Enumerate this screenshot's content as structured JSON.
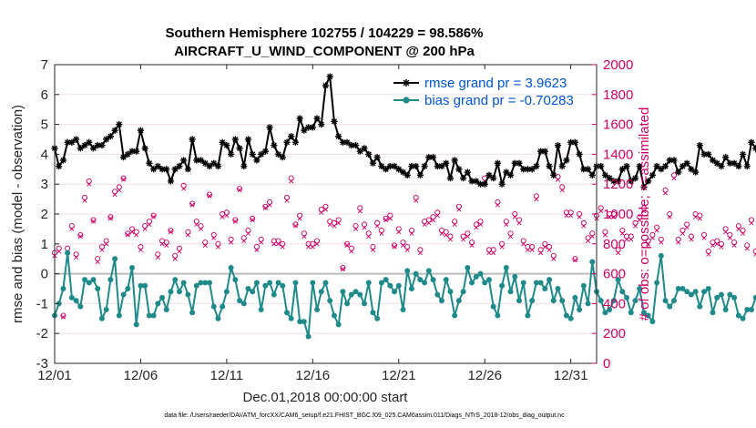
{
  "chart_data": {
    "type": "line",
    "title": "Southern Hemisphere 102755 / 104229 = 98.586%",
    "subtitle": "AIRCRAFT_U_WIND_COMPONENT @ 200 hPa",
    "xlabel": "Dec.01,2018 00:00:00 start",
    "ylabel": "rmse and bias (model - observation)",
    "y2label": "# of obs: o=possible; ×=assimilated",
    "footnote": "data file: /Users/raeder/DAI/ATM_forcXX/CAM6_setup/f.e21.FHIST_BGC.f09_025.CAM6assim.011/Diags_NTrS_2018-12/obs_diag_output.nc",
    "xlim": [
      1,
      32.5
    ],
    "ylim": [
      -3,
      7
    ],
    "y2lim": [
      0,
      2000
    ],
    "x_tick_values": [
      1,
      6,
      11,
      16,
      21,
      26,
      31
    ],
    "x_tick_labels": [
      "12/01",
      "12/06",
      "12/11",
      "12/16",
      "12/21",
      "12/26",
      "12/31"
    ],
    "y_ticks": [
      "-3",
      "-2",
      "-1",
      "0",
      "1",
      "2",
      "3",
      "4",
      "5",
      "6",
      "7"
    ],
    "y2_ticks": [
      "0",
      "200",
      "400",
      "600",
      "800",
      "1000",
      "1200",
      "1400",
      "1600",
      "1800",
      "2000"
    ],
    "x_start": 1,
    "x_step": 0.25,
    "series": [
      {
        "name": "rmse grand pr = 3.9623",
        "color": "#000000",
        "marker": "star",
        "values": [
          4.2,
          3.6,
          3.8,
          4.4,
          4.4,
          4.5,
          4.2,
          4.3,
          4.4,
          4.2,
          4.3,
          4.3,
          4.5,
          4.6,
          4.8,
          5.0,
          3.9,
          4.0,
          4.1,
          4.1,
          4.8,
          4.2,
          3.7,
          3.5,
          3.6,
          3.5,
          3.5,
          3.1,
          3.5,
          3.6,
          3.8,
          3.5,
          4.5,
          3.8,
          3.8,
          3.7,
          3.6,
          3.7,
          3.6,
          4.4,
          4.3,
          4.0,
          4.5,
          4.2,
          3.6,
          4.5,
          4.0,
          3.8,
          4.0,
          4.1,
          4.9,
          4.3,
          4.0,
          3.9,
          4.4,
          4.6,
          4.4,
          5.2,
          4.8,
          4.9,
          4.9,
          5.2,
          5.0,
          6.3,
          6.6,
          5.1,
          4.6,
          4.4,
          4.4,
          4.3,
          4.3,
          4.1,
          4.2,
          4.0,
          3.7,
          3.9,
          3.6,
          3.5,
          3.6,
          3.6,
          3.5,
          3.4,
          3.3,
          3.6,
          3.6,
          3.3,
          3.6,
          3.9,
          3.9,
          3.6,
          3.6,
          3.7,
          3.2,
          3.8,
          3.5,
          3.2,
          3.4,
          3.1,
          3.1,
          3.0,
          3.0,
          3.3,
          3.2,
          3.7,
          3.0,
          3.4,
          3.3,
          3.7,
          3.7,
          3.5,
          3.5,
          3.5,
          3.6,
          4.1,
          4.1,
          3.6,
          3.3,
          4.3,
          3.6,
          3.8,
          4.4,
          4.4,
          4.0,
          3.5,
          3.5,
          3.3,
          3.6,
          3.6,
          3.3,
          3.2,
          3.1,
          3.1,
          3.5,
          3.6,
          3.1,
          3.2,
          3.6,
          2.9,
          3.1,
          3.3,
          3.6,
          3.5,
          3.6,
          3.8,
          3.8,
          3.4,
          3.6,
          3.7,
          3.5,
          3.4,
          4.3,
          4.0,
          4.0,
          3.8,
          3.7,
          3.6,
          3.9,
          3.7,
          3.7,
          3.6,
          4.0,
          3.6,
          4.4,
          4.2,
          3.5,
          3.4
        ]
      },
      {
        "name": "bias grand pr = -0.70283",
        "color": "#1f8a8a",
        "marker": "circle",
        "values": [
          -1.4,
          -1.0,
          -0.5,
          0.7,
          -0.8,
          -0.9,
          -1.1,
          -0.2,
          -0.3,
          -0.2,
          -0.5,
          -1.5,
          -1.2,
          -0.2,
          0.5,
          -1.4,
          -0.7,
          -0.5,
          0.2,
          -1.7,
          -0.4,
          -0.4,
          -1.4,
          -1.4,
          -1.0,
          -0.8,
          -1.2,
          -0.6,
          -0.2,
          -0.6,
          -0.3,
          -0.7,
          -1.3,
          -0.4,
          -0.3,
          -0.3,
          -0.3,
          -1.1,
          -1.5,
          -1.1,
          -0.6,
          0.2,
          -0.2,
          -0.9,
          -1.0,
          -0.5,
          -0.6,
          -0.3,
          -1.2,
          -0.4,
          -0.3,
          -0.7,
          -0.3,
          -0.4,
          -1.3,
          -1.5,
          -0.3,
          -1.6,
          -1.6,
          -2.1,
          -0.3,
          -1.2,
          -0.6,
          -0.3,
          -0.9,
          -1.4,
          -1.7,
          -0.6,
          -1.0,
          -0.7,
          -0.6,
          -0.7,
          -1.0,
          -0.3,
          -1.3,
          -1.5,
          -0.3,
          -0.2,
          -0.4,
          -0.6,
          -0.4,
          -1.2,
          0.1,
          -0.5,
          0.0,
          -0.2,
          -0.3,
          0.1,
          -0.2,
          -0.7,
          -0.9,
          -0.2,
          -0.6,
          -1.4,
          -0.9,
          -0.6,
          0.2,
          -0.3,
          -0.1,
          0.0,
          -0.3,
          -0.2,
          -1.1,
          -1.4,
          -0.4,
          0.2,
          -0.6,
          -0.1,
          -0.9,
          -0.3,
          -1.4,
          -0.9,
          -0.3,
          -0.3,
          -0.5,
          -0.2,
          -0.9,
          -0.5,
          -0.9,
          -1.4,
          -1.5,
          -0.8,
          -1.2,
          -0.4,
          -1.0,
          0.4,
          -0.6,
          -0.9,
          -1.3,
          -1.2,
          -0.9,
          -0.2,
          -0.6,
          -0.8,
          -1.3,
          -0.9,
          -0.5,
          -1.3,
          -1.4,
          -1.6,
          -0.3,
          0.6,
          -0.9,
          -1.1,
          -0.9,
          -0.5,
          -0.5,
          -0.6,
          -0.7,
          -0.6,
          -1.1,
          -0.6,
          -0.5,
          -1.3,
          -0.8,
          -0.7,
          -1.2,
          -0.7,
          -0.8,
          -1.4,
          -1.5,
          -1.2,
          -1.2,
          -0.8,
          -0.4
        ]
      }
    ],
    "obs_count_series": [
      {
        "name": "# of obs possible",
        "marker": "o",
        "color": "#cc0066",
        "values": [
          740,
          770,
          320,
          770,
          920,
          730,
          860,
          1110,
          1220,
          960,
          700,
          780,
          820,
          980,
          1150,
          1180,
          1240,
          870,
          900,
          880,
          780,
          920,
          950,
          990,
          730,
          820,
          810,
          890,
          720,
          770,
          1190,
          880,
          1070,
          950,
          920,
          810,
          1130,
          860,
          800,
          1000,
          1010,
          830,
          960,
          1170,
          840,
          890,
          970,
          780,
          830,
          1050,
          1080,
          820,
          820,
          800,
          1110,
          1240,
          930,
          990,
          870,
          800,
          800,
          820,
          1030,
          1050,
          950,
          940,
          960,
          640,
          800,
          770,
          920,
          1040,
          930,
          870,
          780,
          940,
          890,
          970,
          990,
          790,
          900,
          810,
          780,
          890,
          1110,
          760,
          950,
          960,
          980,
          1010,
          890,
          880,
          850,
          950,
          1050,
          850,
          870,
          810,
          930,
          950,
          1240,
          760,
          760,
          1080,
          800,
          950,
          870,
          1000,
          960,
          820,
          780,
          780,
          1120,
          760,
          800,
          780,
          720,
          1250,
          1180,
          1010,
          1010,
          700,
          1000,
          940,
          840,
          870,
          990,
          1040,
          880,
          1000,
          1000,
          760,
          890,
          850,
          850,
          940,
          980,
          1040,
          820,
          860,
          910,
          830,
          1160,
          1000,
          1260,
          830,
          890,
          930,
          850,
          1000,
          990,
          860,
          750,
          810,
          820,
          800,
          900,
          860,
          810,
          920,
          890,
          790,
          960,
          750,
          880,
          1200,
          1260,
          810
        ]
      },
      {
        "name": "# of obs assimilated",
        "marker": "x",
        "color": "#cc0066",
        "values": [
          720,
          750,
          310,
          740,
          900,
          710,
          850,
          1090,
          1200,
          950,
          680,
          760,
          800,
          970,
          1130,
          1160,
          1230,
          860,
          880,
          860,
          760,
          900,
          930,
          980,
          710,
          800,
          790,
          880,
          700,
          750,
          1170,
          860,
          1060,
          930,
          900,
          790,
          1120,
          840,
          780,
          980,
          990,
          810,
          950,
          1160,
          820,
          870,
          960,
          760,
          810,
          1040,
          1060,
          800,
          800,
          780,
          1090,
          1220,
          920,
          970,
          850,
          780,
          780,
          800,
          1010,
          1030,
          930,
          920,
          940,
          630,
          790,
          750,
          900,
          1020,
          910,
          850,
          760,
          920,
          870,
          960,
          970,
          780,
          880,
          790,
          760,
          870,
          1090,
          740,
          930,
          940,
          960,
          990,
          870,
          860,
          830,
          930,
          1030,
          830,
          850,
          790,
          910,
          930,
          1220,
          740,
          740,
          1060,
          780,
          930,
          850,
          980,
          940,
          800,
          760,
          760,
          1100,
          740,
          780,
          760,
          700,
          1230,
          1160,
          990,
          990,
          690,
          980,
          920,
          820,
          850,
          970,
          1020,
          860,
          980,
          980,
          740,
          870,
          830,
          830,
          920,
          960,
          1020,
          800,
          840,
          890,
          810,
          1140,
          980,
          1240,
          810,
          870,
          910,
          830,
          980,
          970,
          840,
          730,
          790,
          800,
          780,
          880,
          840,
          790,
          900,
          870,
          770,
          940,
          730,
          860,
          1180,
          1240,
          790
        ]
      }
    ],
    "legend_position": "top-right",
    "colors": {
      "rmse": "#000000",
      "bias": "#1f8a8a",
      "obs": "#cc0066",
      "zero_line": "#bbbbbb"
    }
  }
}
